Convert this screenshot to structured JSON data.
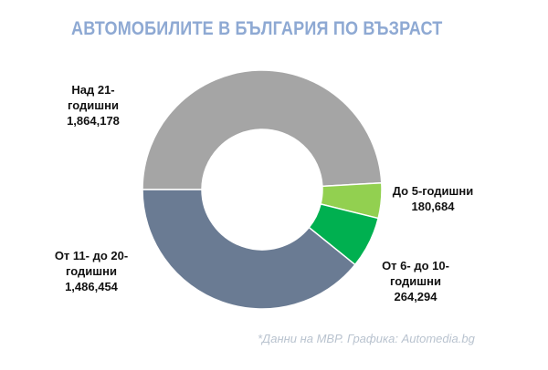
{
  "chart_data": {
    "type": "donut",
    "title": "АВТОМОБИЛИТЕ В БЪЛГАРИЯ ПО ВЪЗРАСТ",
    "categories": [
      "Над 21-годишни",
      "До 5-годишни",
      "От 6- до 10-годишни",
      "От 11- до 20-годишни"
    ],
    "values": [
      1864178,
      180684,
      264294,
      1486454
    ],
    "value_labels": [
      "1,864,178",
      "180,684",
      "264,294",
      "1,486,454"
    ],
    "colors": [
      "#a5a5a5",
      "#92d050",
      "#00b050",
      "#6a7b93"
    ],
    "source": "*Данни на МВР. Графика: Automedia.bg"
  }
}
